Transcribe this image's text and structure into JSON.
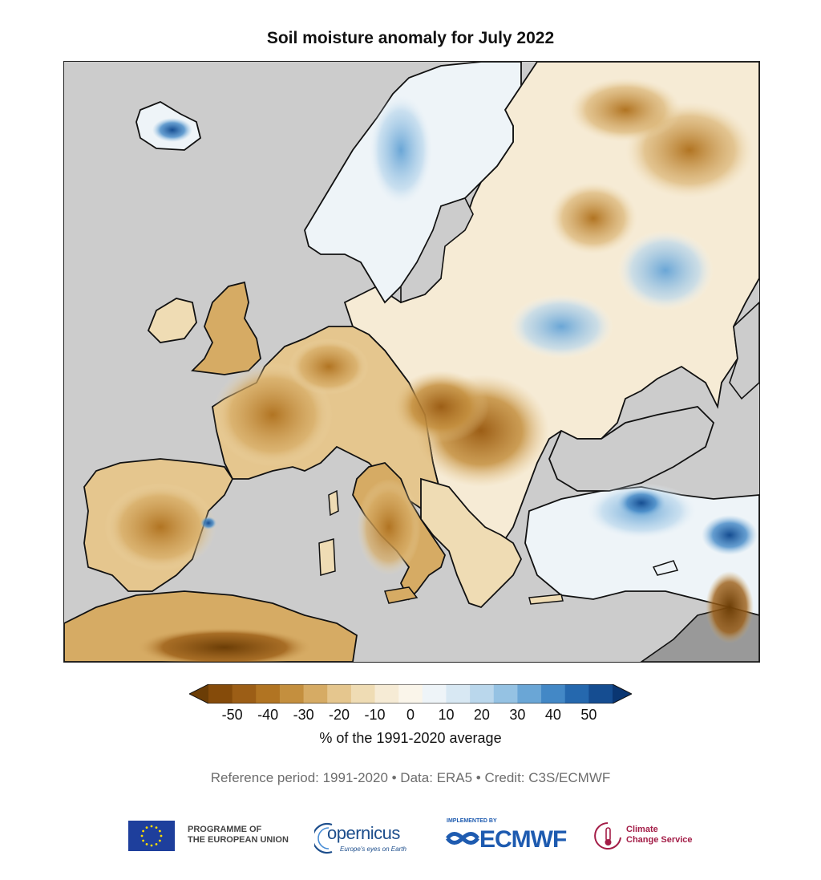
{
  "title": "Soil moisture anomaly for July 2022",
  "colorbar": {
    "ticks": [
      "-50",
      "-40",
      "-30",
      "-20",
      "-10",
      "0",
      "10",
      "20",
      "30",
      "40",
      "50"
    ],
    "label": "% of the 1991-2020 average",
    "colors": [
      "#6b3d06",
      "#854b0a",
      "#9c5e16",
      "#b17422",
      "#c48f3e",
      "#d6ab64",
      "#e5c68e",
      "#efdcb4",
      "#f6ebd5",
      "#faf5ea",
      "#eef4f8",
      "#d8e8f3",
      "#bad7ec",
      "#95c2e3",
      "#6aa6d6",
      "#4388c6",
      "#2568ae",
      "#154d91",
      "#0a3672"
    ]
  },
  "footer": {
    "note": "Reference period: 1991-2020 • Data: ERA5 • Credit: C3S/ECMWF"
  },
  "logos": {
    "eu_line1": "PROGRAMME OF",
    "eu_line2": "THE EUROPEAN UNION",
    "copernicus": "opernicus",
    "copernicus_tag": "Europe's eyes on Earth",
    "ecmwf_small": "IMPLEMENTED BY",
    "ecmwf": "ECMWF",
    "c3s_line1": "Climate",
    "c3s_line2": "Change Service"
  },
  "colors": {
    "sea": "#cccccc",
    "coastline": "#111111",
    "no_data": "#999999"
  }
}
